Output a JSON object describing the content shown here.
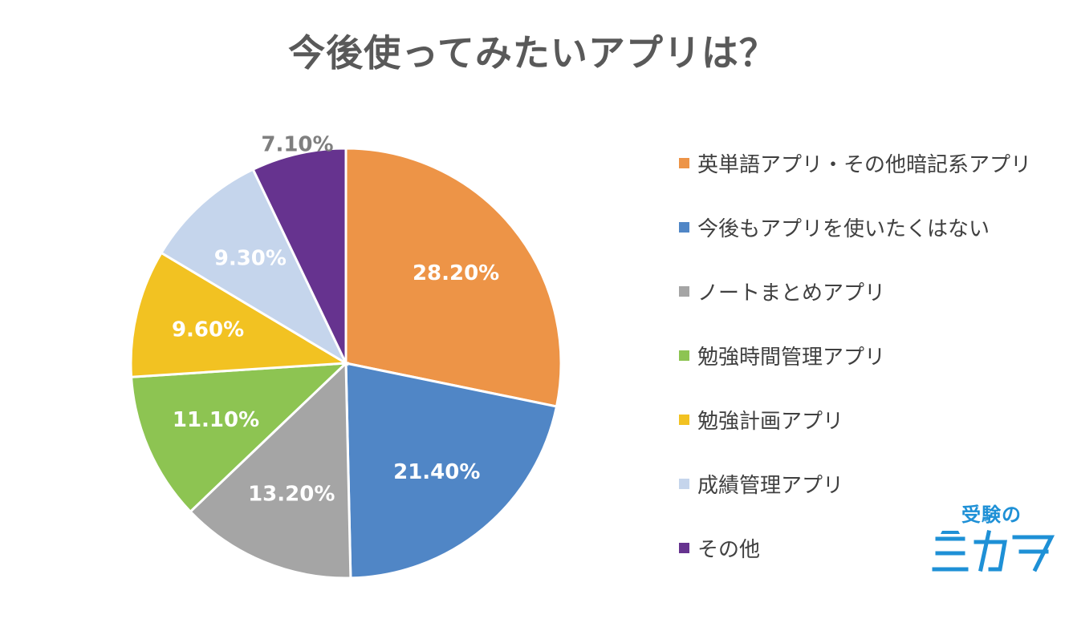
{
  "title": "今後使ってみたいアプリは？",
  "chart_data": {
    "type": "pie",
    "title": "今後使ってみたいアプリは？",
    "slices": [
      {
        "label": "英単語アプリ・その他暗記系アプリ",
        "value": 28.2,
        "display": "28.20%",
        "color": "#ED9447",
        "label_color": "#FFFFFF"
      },
      {
        "label": "今後もアプリを使いたくはない",
        "value": 21.4,
        "display": "21.40%",
        "color": "#5086C6",
        "label_color": "#FFFFFF"
      },
      {
        "label": "ノートまとめアプリ",
        "value": 13.2,
        "display": "13.20%",
        "color": "#A5A5A5",
        "label_color": "#FFFFFF"
      },
      {
        "label": "勉強時間管理アプリ",
        "value": 11.1,
        "display": "11.10%",
        "color": "#8DC452",
        "label_color": "#FFFFFF"
      },
      {
        "label": "勉強計画アプリ",
        "value": 9.6,
        "display": "9.60%",
        "color": "#F2C222",
        "label_color": "#FFFFFF"
      },
      {
        "label": "成績管理アプリ",
        "value": 9.3,
        "display": "9.30%",
        "color": "#C5D5EC",
        "label_color": "#FFFFFF"
      },
      {
        "label": "その他",
        "value": 7.1,
        "display": "7.10%",
        "color": "#66338F",
        "label_color": "#7F7F7F"
      }
    ],
    "legend_position": "right"
  },
  "logo": {
    "top_text": "受験の",
    "main_text": "ミカタ",
    "color": "#1E90D6"
  }
}
